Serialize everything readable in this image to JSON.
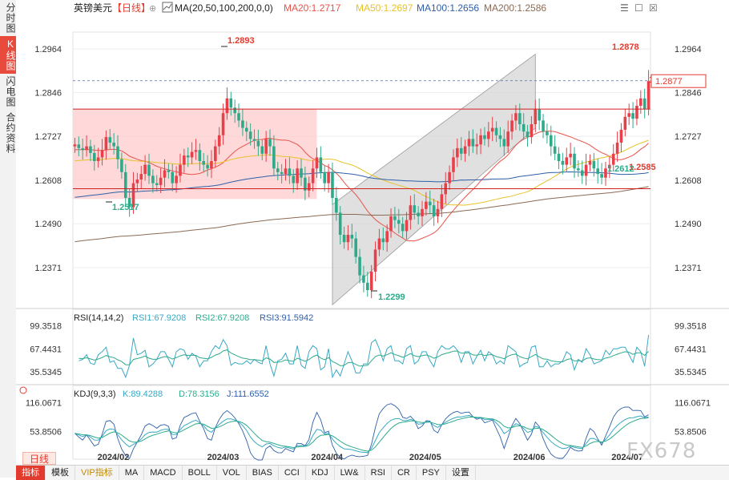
{
  "sidebar": {
    "tabs": [
      {
        "label": "分时图",
        "active": false
      },
      {
        "label": "K线图",
        "active": true
      },
      {
        "label": "闪电图",
        "active": false
      },
      {
        "label": "合约资料",
        "active": false
      }
    ]
  },
  "header": {
    "symbol": "英镑美元",
    "period": "【日线】",
    "ma_label": "MA(20,50,100,200,0,0)",
    "ma20": "MA20:1.2717",
    "ma50": "MA50:1.2697",
    "ma100": "MA100:1.2656",
    "ma200": "MA200:1.2586"
  },
  "window_buttons": [
    "☰",
    "☐",
    "☒"
  ],
  "rsi_header": {
    "name": "RSI(14,14,2)",
    "rsi1": "RSI1:67.9208",
    "rsi2": "RSI2:67.9208",
    "rsi3": "RSI3:91.5942"
  },
  "kdj_header": {
    "name": "KDJ(9,3,3)",
    "k": "K:89.4288",
    "d": "D:78.3156",
    "j": "J:111.6552"
  },
  "bottom_tabs": [
    "指标",
    "模板",
    "VIP指标",
    "MA",
    "MACD",
    "BOLL",
    "VOL",
    "BIAS",
    "CCI",
    "KDJ",
    "LW&",
    "RSI",
    "CR",
    "PSY",
    "设置"
  ],
  "period_button": "日线",
  "watermark": "FX678",
  "colors": {
    "up": "#e8404a",
    "down": "#2eaa8b",
    "ma20": "#e8534a",
    "ma50": "#e8c22a",
    "ma100": "#2f5fa8",
    "ma200": "#8b6a55",
    "channel": "#d5d5d5",
    "zone": "#ffcccc",
    "rsi": "#38a9c4",
    "kdj": "#38a9c4"
  },
  "chart_data": {
    "type": "candlestick",
    "title": "英镑美元 【日线】",
    "y_ticks": [
      "1.2964",
      "1.2846",
      "1.2727",
      "1.2608",
      "1.2490",
      "1.2371"
    ],
    "y_range": [
      1.226,
      1.301
    ],
    "x_ticks": [
      "2024/02",
      "2024/03",
      "2024/04",
      "2024/05",
      "2024/06",
      "2024/07"
    ],
    "current_price": "1.2877",
    "annotations": {
      "high": "1.2893",
      "low": "1.2517",
      "low2": "1.2299",
      "peak": "1.2878",
      "resistance": "1.2801",
      "support": "1.2585",
      "swing_low": "1.2612"
    },
    "levels": {
      "resistance": 1.2801,
      "support": 1.2585,
      "dashed": 1.2878
    },
    "start_close": 1.27,
    "closes": [
      1.2705,
      1.2695,
      1.269,
      1.27,
      1.2682,
      1.266,
      1.267,
      1.269,
      1.2725,
      1.271,
      1.27,
      1.2665,
      1.263,
      1.256,
      1.2535,
      1.26,
      1.261,
      1.2625,
      1.265,
      1.262,
      1.26,
      1.2595,
      1.2615,
      1.2635,
      1.263,
      1.26,
      1.262,
      1.265,
      1.2675,
      1.267,
      1.2685,
      1.269,
      1.266,
      1.265,
      1.264,
      1.266,
      1.27,
      1.273,
      1.279,
      1.283,
      1.2805,
      1.279,
      1.277,
      1.275,
      1.274,
      1.272,
      1.2715,
      1.27,
      1.268,
      1.272,
      1.27,
      1.264,
      1.263,
      1.2625,
      1.264,
      1.262,
      1.26,
      1.264,
      1.2615,
      1.258,
      1.26,
      1.264,
      1.267,
      1.263,
      1.26,
      1.263,
      1.256,
      1.252,
      1.246,
      1.244,
      1.246,
      1.245,
      1.24,
      1.235,
      1.233,
      1.231,
      1.236,
      1.242,
      1.245,
      1.244,
      1.247,
      1.251,
      1.25,
      1.249,
      1.247,
      1.25,
      1.254,
      1.252,
      1.251,
      1.253,
      1.255,
      1.254,
      1.251,
      1.253,
      1.257,
      1.26,
      1.263,
      1.267,
      1.2695,
      1.268,
      1.27,
      1.272,
      1.27,
      1.2705,
      1.273,
      1.272,
      1.274,
      1.275,
      1.273,
      1.272,
      1.27,
      1.274,
      1.277,
      1.279,
      1.276,
      1.274,
      1.2725,
      1.276,
      1.28,
      1.277,
      1.274,
      1.273,
      1.27,
      1.268,
      1.266,
      1.265,
      1.267,
      1.268,
      1.264,
      1.2635,
      1.262,
      1.265,
      1.266,
      1.264,
      1.2625,
      1.2615,
      1.264,
      1.265,
      1.268,
      1.271,
      1.2745,
      1.278,
      1.279,
      1.2775,
      1.281,
      1.283,
      1.2802,
      1.2877
    ]
  }
}
